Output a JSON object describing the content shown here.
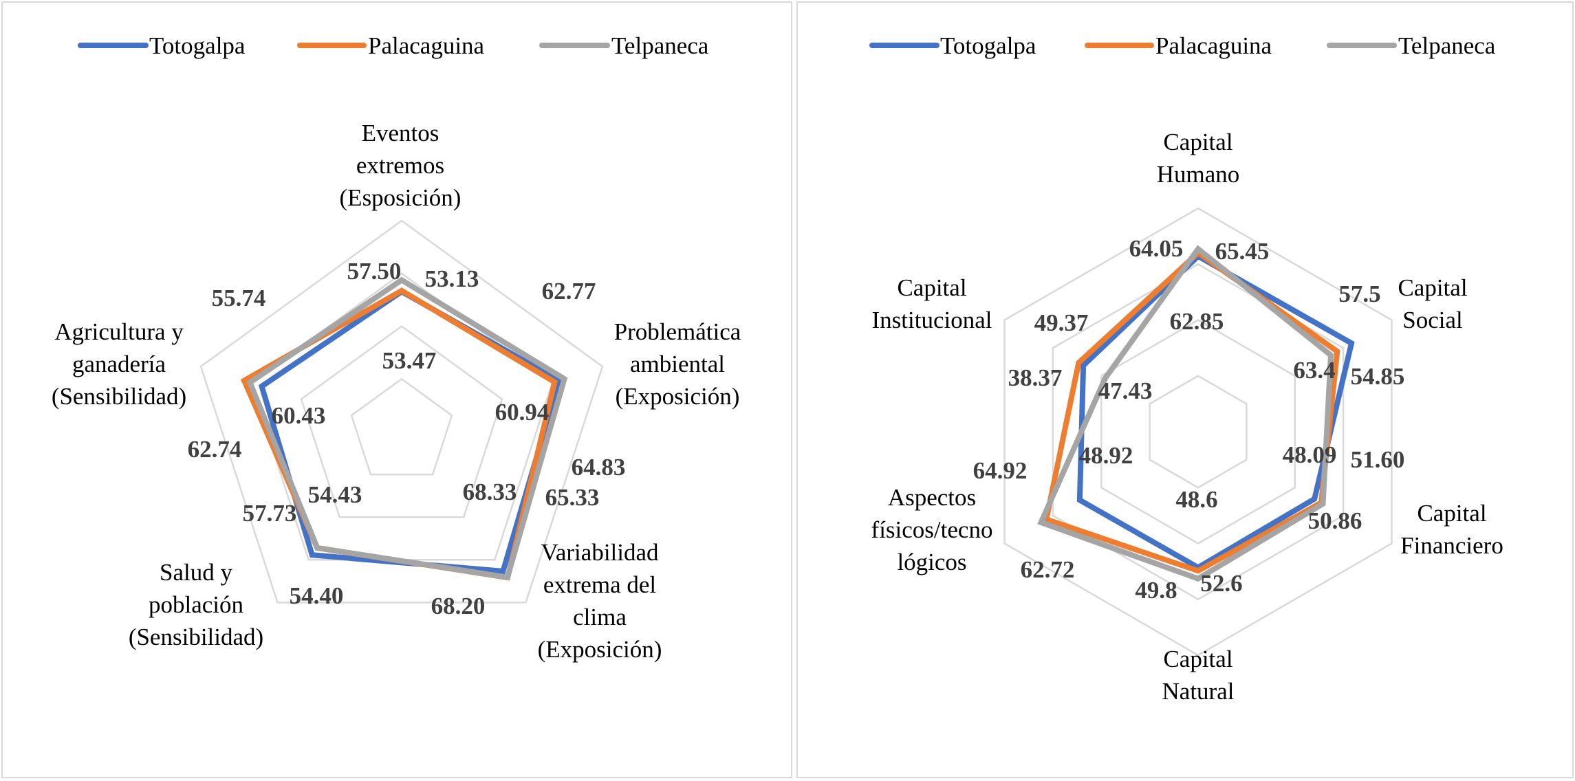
{
  "colors": {
    "Totogalpa": "#4472C4",
    "Palacaguina": "#ED7D31",
    "Telpaneca": "#A5A5A5",
    "grid": "#D9D9D9"
  },
  "chart_data": [
    {
      "type": "radar",
      "legend_position": "top",
      "grid": true,
      "rlim": [
        0,
        80
      ],
      "categories": [
        [
          "Eventos",
          "extremos",
          "(Esposición)"
        ],
        [
          "Problemática",
          "ambiental",
          "(Exposición)"
        ],
        [
          "Variabilidad",
          "extrema del",
          "clima",
          "(Exposición)"
        ],
        [
          "Salud y",
          "población",
          "(Sensibilidad)"
        ],
        [
          "Agricultura y",
          "ganadería",
          "(Sensibilidad)"
        ]
      ],
      "series": [
        {
          "name": "Totogalpa",
          "values": [
            53.13,
            62.77,
            65.33,
            57.73,
            55.74
          ],
          "labels": [
            "53.13",
            "62.77",
            "65.33",
            "57.73",
            "55.74"
          ]
        },
        {
          "name": "Palacaguina",
          "values": [
            53.47,
            60.94,
            68.33,
            54.43,
            62.74
          ],
          "labels": [
            "53.47",
            "60.94",
            "68.33",
            "54.43",
            "62.74"
          ]
        },
        {
          "name": "Telpaneca",
          "values": [
            57.5,
            64.83,
            68.2,
            54.4,
            60.43
          ],
          "labels": [
            "57.50",
            "64.83",
            "68.20",
            "54.40",
            "60.43"
          ]
        }
      ]
    },
    {
      "type": "radar",
      "legend_position": "top",
      "grid": true,
      "rlim": [
        0,
        80
      ],
      "categories": [
        [
          "Capital",
          "Humano"
        ],
        [
          "Capital",
          "Social"
        ],
        [
          "Capital",
          "Financiero"
        ],
        [
          "Capital",
          "Natural"
        ],
        [
          "Aspectos",
          "físicos/tecno",
          "lógicos"
        ],
        [
          "Capital",
          "Institucional"
        ]
      ],
      "series": [
        {
          "name": "Totogalpa",
          "values": [
            62.85,
            63.4,
            48.09,
            48.6,
            48.92,
            47.43
          ],
          "labels": [
            "62.85",
            "63.4",
            "48.09",
            "48.6",
            "48.92",
            "47.43"
          ]
        },
        {
          "name": "Palacaguina",
          "values": [
            64.05,
            57.5,
            50.86,
            49.8,
            62.72,
            49.37
          ],
          "labels": [
            "64.05",
            "57.5",
            "50.86",
            "49.8",
            "62.72",
            "49.37"
          ]
        },
        {
          "name": "Telpaneca",
          "values": [
            65.45,
            54.85,
            51.6,
            52.6,
            64.92,
            38.37
          ],
          "labels": [
            "65.45",
            "54.85",
            "51.60",
            "52.6",
            "64.92",
            "38.37"
          ]
        }
      ]
    }
  ]
}
